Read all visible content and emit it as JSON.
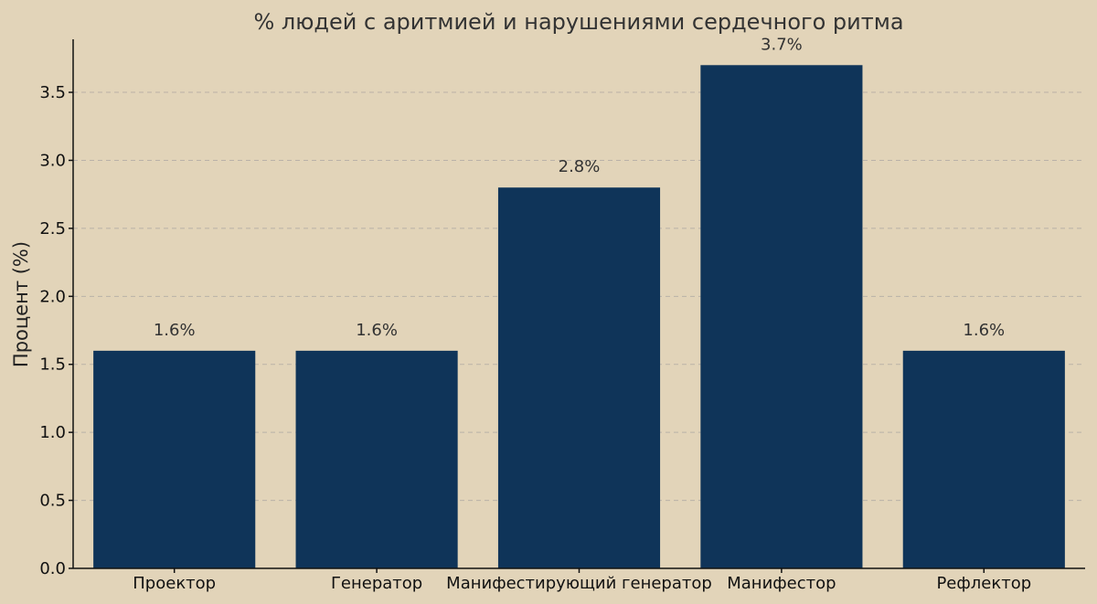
{
  "colors": {
    "background": "#e2d4b9",
    "bar": "#0f3459",
    "grid": "#b9b1a8",
    "text": "#333333"
  },
  "chart_data": {
    "type": "bar",
    "title": "% людей с аритмией и нарушениями сердечного ритма",
    "xlabel": "",
    "ylabel": "Процент (%)",
    "categories": [
      "Проектор",
      "Генератор",
      "Манифестирующий генератор",
      "Манифестор",
      "Рефлектор"
    ],
    "values": [
      1.6,
      1.6,
      2.8,
      3.7,
      1.6
    ],
    "data_labels": [
      "1.6%",
      "1.6%",
      "2.8%",
      "3.7%",
      "1.6%"
    ],
    "ylim": [
      0,
      3.89
    ],
    "yticks": [
      0.0,
      0.5,
      1.0,
      1.5,
      2.0,
      2.5,
      3.0,
      3.5
    ],
    "ytick_labels": [
      "0.0",
      "0.5",
      "1.0",
      "1.5",
      "2.0",
      "2.5",
      "3.0",
      "3.5"
    ],
    "grid": true,
    "legend": "none"
  }
}
